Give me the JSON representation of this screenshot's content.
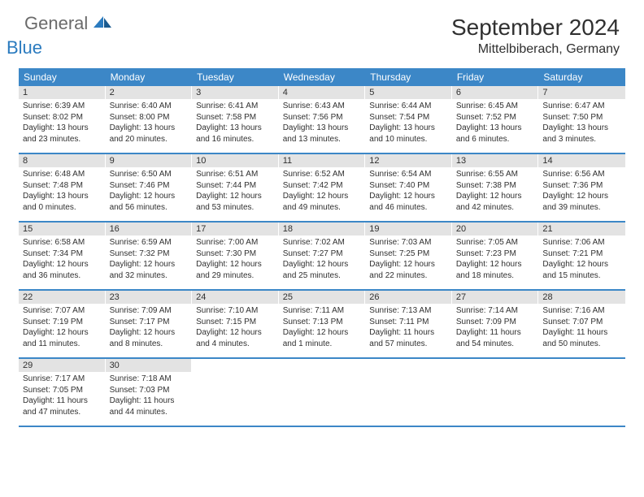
{
  "brand": {
    "part1": "General",
    "part2": "Blue"
  },
  "title": "September 2024",
  "location": "Mittelbiberach, Germany",
  "colors": {
    "header_bg": "#3c87c7",
    "header_text": "#ffffff",
    "daynum_bg": "#e3e3e3",
    "text": "#303030",
    "brand_gray": "#6a6a6a",
    "brand_blue": "#2b7bbf",
    "divider": "#3c87c7"
  },
  "day_names": [
    "Sunday",
    "Monday",
    "Tuesday",
    "Wednesday",
    "Thursday",
    "Friday",
    "Saturday"
  ],
  "weeks": [
    [
      {
        "n": "1",
        "sr": "Sunrise: 6:39 AM",
        "ss": "Sunset: 8:02 PM",
        "dl": "Daylight: 13 hours and 23 minutes."
      },
      {
        "n": "2",
        "sr": "Sunrise: 6:40 AM",
        "ss": "Sunset: 8:00 PM",
        "dl": "Daylight: 13 hours and 20 minutes."
      },
      {
        "n": "3",
        "sr": "Sunrise: 6:41 AM",
        "ss": "Sunset: 7:58 PM",
        "dl": "Daylight: 13 hours and 16 minutes."
      },
      {
        "n": "4",
        "sr": "Sunrise: 6:43 AM",
        "ss": "Sunset: 7:56 PM",
        "dl": "Daylight: 13 hours and 13 minutes."
      },
      {
        "n": "5",
        "sr": "Sunrise: 6:44 AM",
        "ss": "Sunset: 7:54 PM",
        "dl": "Daylight: 13 hours and 10 minutes."
      },
      {
        "n": "6",
        "sr": "Sunrise: 6:45 AM",
        "ss": "Sunset: 7:52 PM",
        "dl": "Daylight: 13 hours and 6 minutes."
      },
      {
        "n": "7",
        "sr": "Sunrise: 6:47 AM",
        "ss": "Sunset: 7:50 PM",
        "dl": "Daylight: 13 hours and 3 minutes."
      }
    ],
    [
      {
        "n": "8",
        "sr": "Sunrise: 6:48 AM",
        "ss": "Sunset: 7:48 PM",
        "dl": "Daylight: 13 hours and 0 minutes."
      },
      {
        "n": "9",
        "sr": "Sunrise: 6:50 AM",
        "ss": "Sunset: 7:46 PM",
        "dl": "Daylight: 12 hours and 56 minutes."
      },
      {
        "n": "10",
        "sr": "Sunrise: 6:51 AM",
        "ss": "Sunset: 7:44 PM",
        "dl": "Daylight: 12 hours and 53 minutes."
      },
      {
        "n": "11",
        "sr": "Sunrise: 6:52 AM",
        "ss": "Sunset: 7:42 PM",
        "dl": "Daylight: 12 hours and 49 minutes."
      },
      {
        "n": "12",
        "sr": "Sunrise: 6:54 AM",
        "ss": "Sunset: 7:40 PM",
        "dl": "Daylight: 12 hours and 46 minutes."
      },
      {
        "n": "13",
        "sr": "Sunrise: 6:55 AM",
        "ss": "Sunset: 7:38 PM",
        "dl": "Daylight: 12 hours and 42 minutes."
      },
      {
        "n": "14",
        "sr": "Sunrise: 6:56 AM",
        "ss": "Sunset: 7:36 PM",
        "dl": "Daylight: 12 hours and 39 minutes."
      }
    ],
    [
      {
        "n": "15",
        "sr": "Sunrise: 6:58 AM",
        "ss": "Sunset: 7:34 PM",
        "dl": "Daylight: 12 hours and 36 minutes."
      },
      {
        "n": "16",
        "sr": "Sunrise: 6:59 AM",
        "ss": "Sunset: 7:32 PM",
        "dl": "Daylight: 12 hours and 32 minutes."
      },
      {
        "n": "17",
        "sr": "Sunrise: 7:00 AM",
        "ss": "Sunset: 7:30 PM",
        "dl": "Daylight: 12 hours and 29 minutes."
      },
      {
        "n": "18",
        "sr": "Sunrise: 7:02 AM",
        "ss": "Sunset: 7:27 PM",
        "dl": "Daylight: 12 hours and 25 minutes."
      },
      {
        "n": "19",
        "sr": "Sunrise: 7:03 AM",
        "ss": "Sunset: 7:25 PM",
        "dl": "Daylight: 12 hours and 22 minutes."
      },
      {
        "n": "20",
        "sr": "Sunrise: 7:05 AM",
        "ss": "Sunset: 7:23 PM",
        "dl": "Daylight: 12 hours and 18 minutes."
      },
      {
        "n": "21",
        "sr": "Sunrise: 7:06 AM",
        "ss": "Sunset: 7:21 PM",
        "dl": "Daylight: 12 hours and 15 minutes."
      }
    ],
    [
      {
        "n": "22",
        "sr": "Sunrise: 7:07 AM",
        "ss": "Sunset: 7:19 PM",
        "dl": "Daylight: 12 hours and 11 minutes."
      },
      {
        "n": "23",
        "sr": "Sunrise: 7:09 AM",
        "ss": "Sunset: 7:17 PM",
        "dl": "Daylight: 12 hours and 8 minutes."
      },
      {
        "n": "24",
        "sr": "Sunrise: 7:10 AM",
        "ss": "Sunset: 7:15 PM",
        "dl": "Daylight: 12 hours and 4 minutes."
      },
      {
        "n": "25",
        "sr": "Sunrise: 7:11 AM",
        "ss": "Sunset: 7:13 PM",
        "dl": "Daylight: 12 hours and 1 minute."
      },
      {
        "n": "26",
        "sr": "Sunrise: 7:13 AM",
        "ss": "Sunset: 7:11 PM",
        "dl": "Daylight: 11 hours and 57 minutes."
      },
      {
        "n": "27",
        "sr": "Sunrise: 7:14 AM",
        "ss": "Sunset: 7:09 PM",
        "dl": "Daylight: 11 hours and 54 minutes."
      },
      {
        "n": "28",
        "sr": "Sunrise: 7:16 AM",
        "ss": "Sunset: 7:07 PM",
        "dl": "Daylight: 11 hours and 50 minutes."
      }
    ],
    [
      {
        "n": "29",
        "sr": "Sunrise: 7:17 AM",
        "ss": "Sunset: 7:05 PM",
        "dl": "Daylight: 11 hours and 47 minutes."
      },
      {
        "n": "30",
        "sr": "Sunrise: 7:18 AM",
        "ss": "Sunset: 7:03 PM",
        "dl": "Daylight: 11 hours and 44 minutes."
      },
      null,
      null,
      null,
      null,
      null
    ]
  ]
}
